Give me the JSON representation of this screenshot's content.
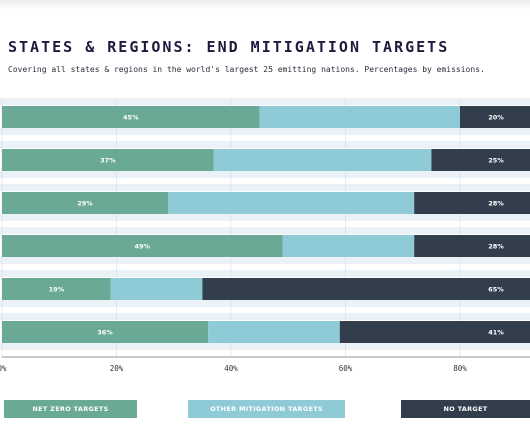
{
  "title": "STATES & REGIONS: END MITIGATION TARGETS",
  "subtitle": "Covering all states & regions in the world's largest 25 emitting nations. Percentages by emissions.",
  "colors": {
    "net_zero": "#6aa995",
    "other": "#8ecbd6",
    "no_target": "#323e4c",
    "stripe": "#eaf1f7"
  },
  "legend": [
    {
      "label": "NET ZERO TARGETS",
      "color": "#6aa995"
    },
    {
      "label": "OTHER MITIGATION TARGETS",
      "color": "#8ecbd6"
    },
    {
      "label": "NO TARGET",
      "color": "#323e4c"
    }
  ],
  "chart_data": {
    "type": "bar",
    "orientation": "horizontal",
    "stacked": true,
    "series": [
      {
        "name": "NET ZERO TARGETS",
        "values": [
          45,
          37,
          29,
          49,
          19,
          36
        ],
        "labels": [
          "45%",
          "37%",
          "29%",
          "49%",
          "19%",
          "36%"
        ]
      },
      {
        "name": "OTHER MITIGATION TARGETS",
        "values": [
          35,
          38,
          43,
          23,
          16,
          23
        ]
      },
      {
        "name": "NO TARGET",
        "values": [
          20,
          25,
          28,
          28,
          65,
          41
        ],
        "labels": [
          "20%",
          "25%",
          "28%",
          "28%",
          "65%",
          "41%"
        ]
      }
    ],
    "xlim": [
      0,
      100
    ],
    "xticks": [
      "0%",
      "20%",
      "40%",
      "60%",
      "80%"
    ],
    "xtick_values": [
      0,
      20,
      40,
      60,
      80
    ],
    "grid": true,
    "legend_position": "bottom"
  }
}
